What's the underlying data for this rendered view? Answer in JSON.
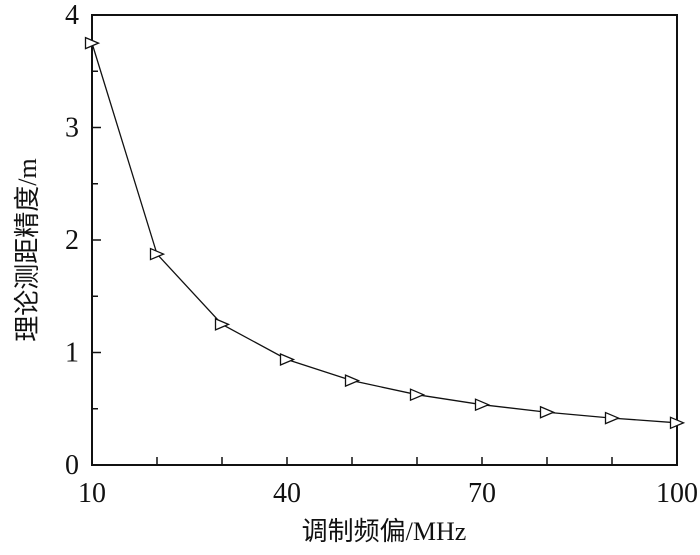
{
  "figure": {
    "background": "#ffffff",
    "line_color": "#111111"
  },
  "chart_data": {
    "type": "line",
    "title": "",
    "xlabel": "调制频偏/MHz",
    "ylabel": "理论测距精度/m",
    "x": [
      10,
      20,
      30,
      40,
      50,
      60,
      70,
      80,
      90,
      100
    ],
    "series": [
      {
        "name": "理论测距精度",
        "marker": "open-right-triangle",
        "marker_fill": "#ffffff",
        "color": "#111111",
        "values": [
          3.75,
          1.875,
          1.25,
          0.938,
          0.75,
          0.625,
          0.536,
          0.469,
          0.417,
          0.375
        ]
      }
    ],
    "xlim": [
      10,
      100
    ],
    "ylim": [
      0,
      4
    ],
    "x_ticks": [
      20,
      30,
      40,
      50,
      60,
      70,
      80,
      90
    ],
    "x_tick_label_values": [
      10,
      40,
      70,
      100
    ],
    "x_tick_labels": [
      "10",
      "40",
      "70",
      "100"
    ],
    "y_major_ticks": [
      1,
      2,
      3
    ],
    "y_minor_ticks": [
      0.5,
      1.5,
      2.5,
      3.5
    ],
    "y_tick_labels": [
      "0",
      "1",
      "2",
      "3",
      "4"
    ],
    "y_tick_label_values": [
      0,
      1,
      2,
      3,
      4
    ],
    "grid": false,
    "legend_position": "none"
  }
}
